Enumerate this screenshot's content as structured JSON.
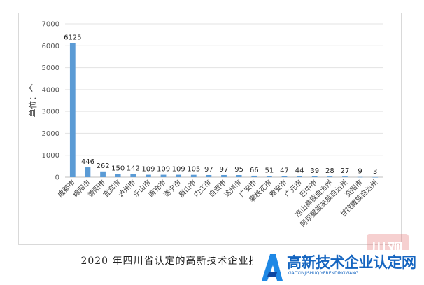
{
  "chart_data": {
    "type": "bar",
    "categories": [
      "成都市",
      "绵阳市",
      "德阳市",
      "宜宾市",
      "泸州市",
      "乐山市",
      "南充市",
      "遂宁市",
      "眉山市",
      "内江市",
      "自贡市",
      "达州市",
      "广安市",
      "攀枝花市",
      "雅安市",
      "广元市",
      "巴中市",
      "凉山彝族自治州",
      "阿坝藏族羌族自治州",
      "资阳市",
      "甘孜藏族自治州"
    ],
    "values": [
      6125,
      446,
      262,
      150,
      142,
      109,
      109,
      109,
      105,
      97,
      97,
      95,
      66,
      51,
      47,
      44,
      39,
      28,
      27,
      9,
      3
    ],
    "ylabel": "单位：个",
    "ylim": [
      0,
      7000
    ],
    "yticks": [
      0,
      1000,
      2000,
      3000,
      4000,
      5000,
      6000,
      7000
    ],
    "bar_color": "#5b9bd5",
    "grid": true
  },
  "caption": "2020 年四川省认定的高新技术企业按市（州）分布情况",
  "watermark": "川观",
  "logo": {
    "title": "高新技术企业认定网",
    "subtitle": "GAOXINJISHUQIYERENDINGWANG",
    "color": "#1565c0"
  }
}
